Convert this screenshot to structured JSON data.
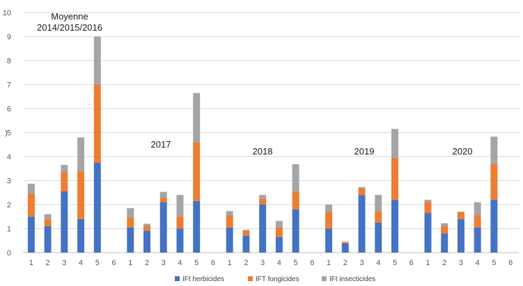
{
  "chart_data": {
    "type": "bar",
    "stacked": true,
    "ylim": [
      0,
      10
    ],
    "yticks": [
      "0",
      "1",
      "2",
      "3",
      "4",
      "5",
      "6",
      "7",
      "8",
      "9",
      "10"
    ],
    "ylabel_fragment": ")",
    "grid": true,
    "legend_position": "bottom",
    "categories": [
      "1",
      "2",
      "3",
      "4",
      "5",
      "6",
      "1",
      "2",
      "3",
      "4",
      "5",
      "6",
      "1",
      "2",
      "3",
      "4",
      "5",
      "6",
      "1",
      "2",
      "3",
      "4",
      "5",
      "6",
      "1",
      "2",
      "3",
      "4",
      "5",
      "6"
    ],
    "series": [
      {
        "name": "IFt herbicides",
        "color": "#4472C4",
        "values": [
          1.5,
          1.1,
          2.55,
          1.4,
          3.75,
          null,
          1.05,
          0.9,
          2.1,
          1.0,
          2.15,
          null,
          1.05,
          0.7,
          2.0,
          0.65,
          1.8,
          null,
          1.0,
          0.38,
          2.4,
          1.25,
          2.2,
          null,
          1.65,
          0.8,
          1.4,
          1.05,
          2.2,
          null
        ]
      },
      {
        "name": "IFT fongicides",
        "color": "#ED7D31",
        "values": [
          0.95,
          0.3,
          0.8,
          2.0,
          3.25,
          null,
          0.4,
          0.2,
          0.2,
          0.5,
          2.45,
          null,
          0.5,
          0.2,
          0.25,
          0.4,
          0.75,
          null,
          0.7,
          0.07,
          0.28,
          0.45,
          1.75,
          null,
          0.45,
          0.3,
          0.3,
          0.5,
          1.5,
          null
        ]
      },
      {
        "name": "IFt insecticides",
        "color": "#A5A5A5",
        "values": [
          0.42,
          0.2,
          0.3,
          1.4,
          2.0,
          null,
          0.4,
          0.1,
          0.23,
          0.9,
          2.05,
          null,
          0.18,
          0.05,
          0.15,
          0.27,
          1.13,
          null,
          0.3,
          0.0,
          0.05,
          0.7,
          1.2,
          null,
          0.1,
          0.12,
          0.0,
          0.55,
          1.13,
          null
        ]
      }
    ],
    "annotations": [
      {
        "text": "Moyenne",
        "anchor_group": 0
      },
      {
        "text": "2014/2015/2016",
        "anchor_group": 0
      },
      {
        "text": "2017",
        "anchor_group": 1
      },
      {
        "text": "2018",
        "anchor_group": 2
      },
      {
        "text": "2019",
        "anchor_group": 3
      },
      {
        "text": "2020",
        "anchor_group": 4
      }
    ],
    "stray_mark": "·"
  }
}
